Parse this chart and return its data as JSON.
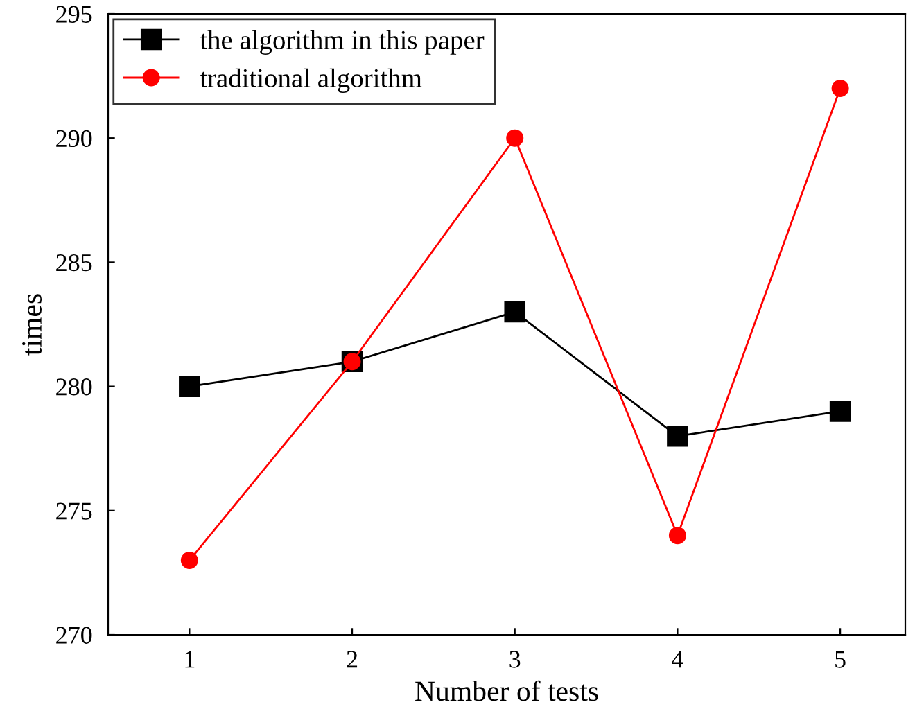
{
  "chart_data": {
    "type": "line",
    "xlabel": "Number of tests",
    "ylabel": "times",
    "x": [
      1,
      2,
      3,
      4,
      5
    ],
    "series": [
      {
        "name": "the algorithm in this paper",
        "color": "#000000",
        "marker": "square",
        "values": [
          280,
          281,
          283,
          278,
          279
        ]
      },
      {
        "name": "traditional algorithm",
        "color": "#ff0000",
        "marker": "circle",
        "values": [
          273,
          281,
          290,
          274,
          292
        ]
      }
    ],
    "xlim": [
      0.5,
      5.4
    ],
    "xticks": [
      1,
      2,
      3,
      4,
      5
    ],
    "ylim": [
      270,
      295
    ],
    "yticks": [
      270,
      275,
      280,
      285,
      290,
      295
    ],
    "grid": false,
    "legend": "top left",
    "line_style": "solid"
  }
}
